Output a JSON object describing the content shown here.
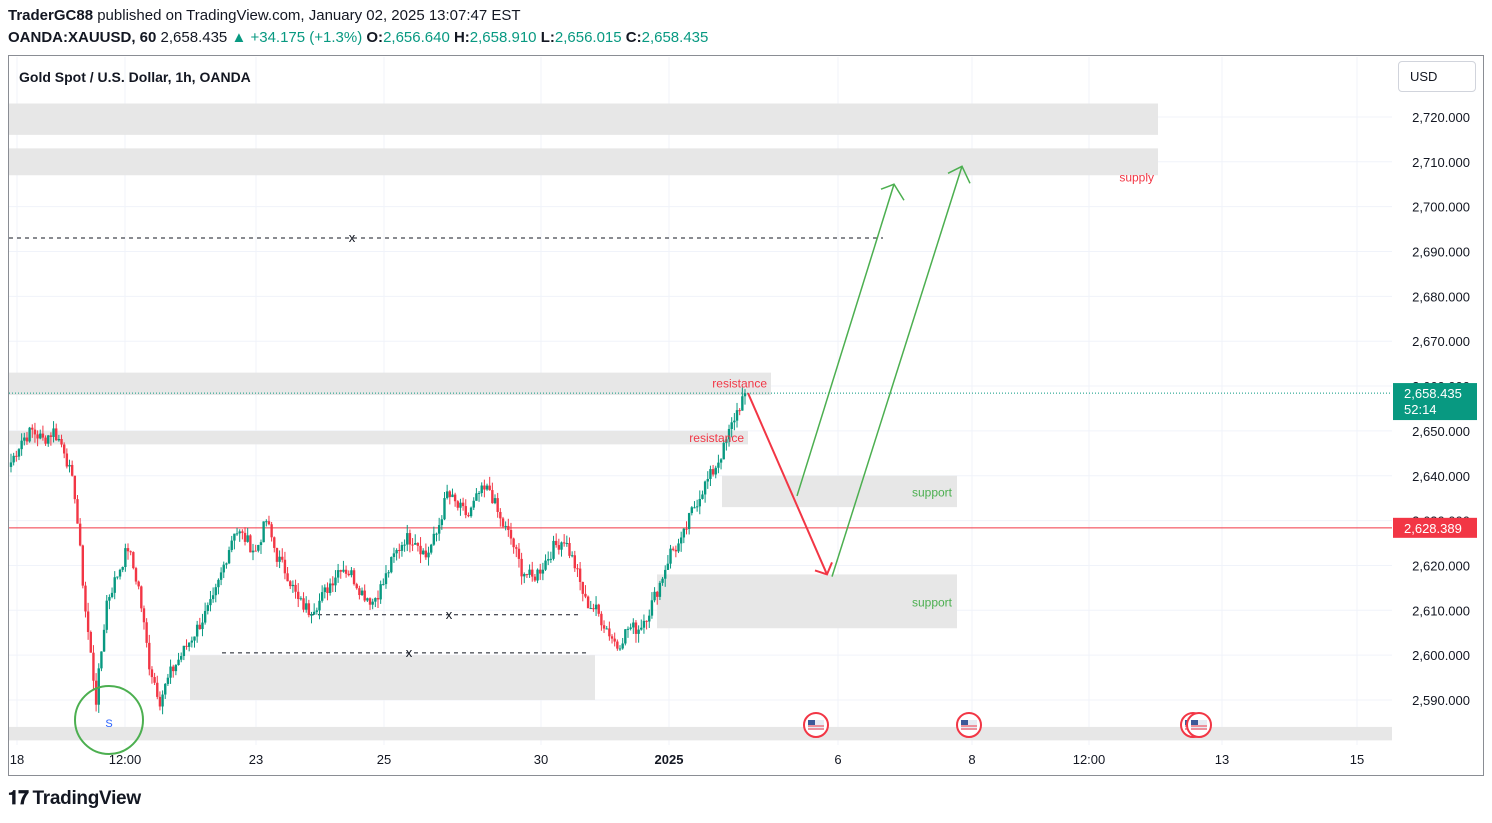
{
  "header": {
    "author": "TraderGC88",
    "published_text": "published on TradingView.com, January 02, 2025 13:07:47 EST",
    "symbol": "OANDA:XAUUSD, 60",
    "last_price": "2,658.435",
    "change": "+34.175 (+1.3%)",
    "open_label": "O:",
    "open": "2,656.640",
    "high_label": "H:",
    "high": "2,658.910",
    "low_label": "L:",
    "low": "2,656.015",
    "close_label": "C:",
    "close": "2,658.435"
  },
  "chart_title": "Gold Spot / U.S. Dollar, 1h, OANDA",
  "currency_button": "USD",
  "footer": {
    "brand": "TradingView"
  },
  "colors": {
    "up": "#089981",
    "down": "#f23645",
    "zone": "#e6e6e6",
    "annotation_red": "#f23645",
    "annotation_green": "#4caf50"
  },
  "chart_data": {
    "type": "candlestick",
    "ylim": [
      2580,
      2728
    ],
    "ytick_labels": [
      "2,590.000",
      "2,600.000",
      "2,610.000",
      "2,620.000",
      "2,630.000",
      "2,640.000",
      "2,650.000",
      "2,660.000",
      "2,670.000",
      "2,680.000",
      "2,690.000",
      "2,700.000",
      "2,710.000",
      "2,720.000"
    ],
    "ytick_values": [
      2590,
      2600,
      2610,
      2620,
      2630,
      2640,
      2650,
      2660,
      2670,
      2680,
      2690,
      2700,
      2710,
      2720
    ],
    "xtick_labels": [
      "18",
      "12:00",
      "23",
      "25",
      "30",
      "2025",
      "6",
      "8",
      "12:00",
      "13",
      "15"
    ],
    "price_badge": {
      "value": 2658.435,
      "label": "2,658.435",
      "countdown": "52:14"
    },
    "horizontal_line": {
      "value": 2628.389,
      "label": "2,628.389"
    },
    "close_series": [
      2643,
      2648,
      2650,
      2648,
      2650,
      2646,
      2636,
      2610,
      2590,
      2612,
      2618,
      2624,
      2615,
      2598,
      2590,
      2596,
      2600,
      2604,
      2608,
      2612,
      2620,
      2628,
      2626,
      2623,
      2630,
      2622,
      2618,
      2612,
      2610,
      2612,
      2616,
      2620,
      2618,
      2614,
      2612,
      2616,
      2622,
      2626,
      2626,
      2622,
      2627,
      2636,
      2633,
      2631,
      2636,
      2637,
      2630,
      2626,
      2619,
      2617,
      2620,
      2624,
      2626,
      2620,
      2612,
      2610,
      2606,
      2602,
      2606,
      2606,
      2610,
      2616,
      2623,
      2625,
      2632,
      2637,
      2641,
      2646,
      2653,
      2658.4
    ],
    "zones": [
      {
        "label": "",
        "top": 2723,
        "bottom": 2716
      },
      {
        "label": "supply",
        "top": 2713,
        "bottom": 2707
      },
      {
        "label": "resistance",
        "top": 2663,
        "bottom": 2658
      },
      {
        "label": "resistance",
        "top": 2650,
        "bottom": 2647
      },
      {
        "label": "support",
        "top": 2640,
        "bottom": 2633
      },
      {
        "label": "support",
        "top": 2618,
        "bottom": 2606
      },
      {
        "label": "",
        "top": 2600,
        "bottom": 2590
      },
      {
        "label": "",
        "top": 2584,
        "bottom": 2581
      }
    ],
    "levels": [
      {
        "value": 2693,
        "marker": "x"
      },
      {
        "value": 2609,
        "marker": "x"
      },
      {
        "value": 2600.5,
        "marker": "x"
      }
    ],
    "projection": {
      "down_target": 2618,
      "up_targets": [
        2705,
        2709
      ]
    }
  }
}
